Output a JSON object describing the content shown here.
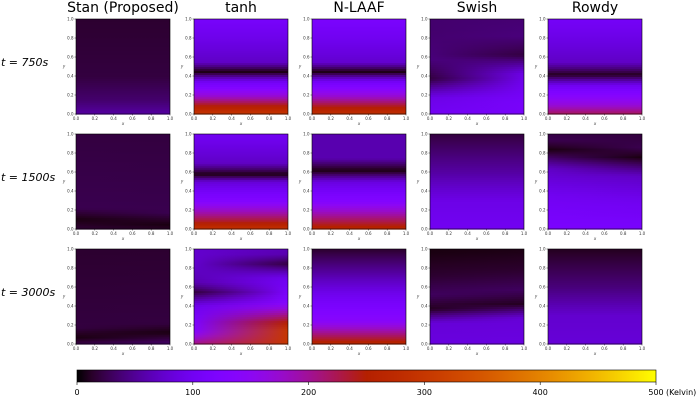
{
  "column_titles": [
    "Stan (Proposed)",
    "tanh",
    "N-LAAF",
    "Swish",
    "Rowdy"
  ],
  "row_labels": [
    "t = 750s",
    "t = 1500s",
    "t = 3000s"
  ],
  "colorbar": {
    "ticks": [
      0,
      100,
      200,
      300,
      400,
      500
    ],
    "unit_label": "(Kelvin)",
    "range": [
      0,
      500
    ],
    "colormap": "gnuplot"
  },
  "chart_data": [
    {
      "type": "heatmap",
      "title": "",
      "xlabel": "x",
      "ylabel": "y",
      "xlim": [
        0,
        1
      ],
      "ylim": [
        0,
        1
      ],
      "tick_labels": [
        "0.0",
        "0.2",
        "0.4",
        "0.6",
        "0.8",
        "1.0"
      ],
      "grid": false,
      "panels": [
        {
          "column": "Stan (Proposed)",
          "row": "t = 750s",
          "max_error_approx": 60,
          "pattern": "dark with faint violet near y=0"
        },
        {
          "column": "tanh",
          "row": "t = 750s",
          "max_error_approx": 300,
          "pattern": "violet top, dark band near y=0.45, orange at bottom"
        },
        {
          "column": "N-LAAF",
          "row": "t = 750s",
          "max_error_approx": 290,
          "pattern": "violet top, dark band near y=0.45, red-orange at bottom"
        },
        {
          "column": "Swish",
          "row": "t = 750s",
          "max_error_approx": 110,
          "pattern": "dark top-left, diagonal dark curve to y=0.5, violet below"
        },
        {
          "column": "Rowdy",
          "row": "t = 750s",
          "max_error_approx": 230,
          "pattern": "violet top, dark band near y=0.42, magenta at bottom"
        },
        {
          "column": "Stan (Proposed)",
          "row": "t = 1500s",
          "max_error_approx": 40,
          "pattern": "nearly uniform dark, faint dark curve near bottom"
        },
        {
          "column": "tanh",
          "row": "t = 1500s",
          "max_error_approx": 290,
          "pattern": "violet, dark band near y=0.58, orange at bottom"
        },
        {
          "column": "N-LAAF",
          "row": "t = 1500s",
          "max_error_approx": 270,
          "pattern": "violet, dark band near y=0.62, red at bottom"
        },
        {
          "column": "Swish",
          "row": "t = 1500s",
          "max_error_approx": 100,
          "pattern": "dark top, violet bottom"
        },
        {
          "column": "Rowdy",
          "row": "t = 1500s",
          "max_error_approx": 120,
          "pattern": "dark top, dark curve near y=0.8, violet below"
        },
        {
          "column": "Stan (Proposed)",
          "row": "t = 3000s",
          "max_error_approx": 40,
          "pattern": "dark, faint dark curve near y=0.1"
        },
        {
          "column": "tanh",
          "row": "t = 3000s",
          "max_error_approx": 300,
          "pattern": "violet, diagonal dark curve from top-left, orange at bottom"
        },
        {
          "column": "N-LAAF",
          "row": "t = 3000s",
          "max_error_approx": 270,
          "pattern": "dark top, violet middle, red at bottom"
        },
        {
          "column": "Swish",
          "row": "t = 3000s",
          "max_error_approx": 90,
          "pattern": "dark top, dark band near y=0.4, violet bottom"
        },
        {
          "column": "Rowdy",
          "row": "t = 3000s",
          "max_error_approx": 80,
          "pattern": "dark top, violet bottom"
        }
      ]
    }
  ]
}
